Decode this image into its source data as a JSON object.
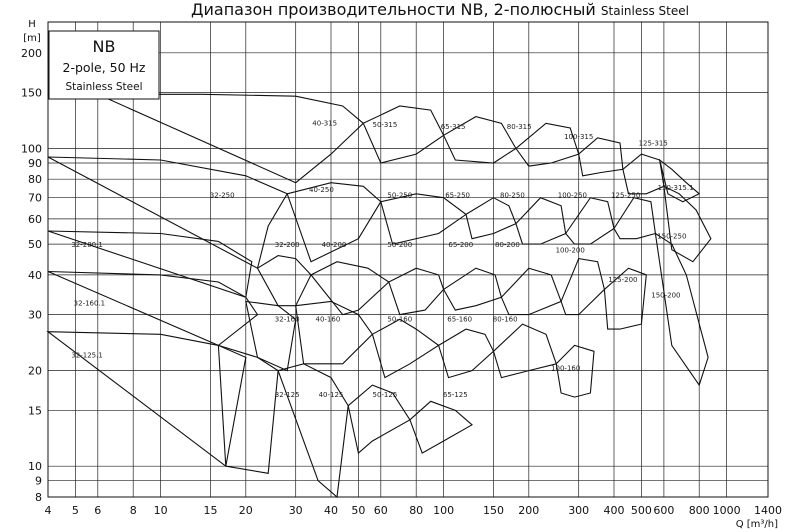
{
  "title": "Диапазон производительности NB, 2-полюсный",
  "title_suffix": "Stainless Steel",
  "legend": {
    "line1": "NB",
    "line2": "2-pole, 50 Hz",
    "line3": "Stainless Steel"
  },
  "chart_data": {
    "type": "line",
    "title": "Диапазон производительности NB, 2-полюсный Stainless Steel",
    "xlabel": "Q [m³/h]",
    "ylabel": "H [m]",
    "y_label_top": "H",
    "y_label_unit": "[m]",
    "x_scale": "log",
    "y_scale": "log",
    "xlim": [
      4,
      1400
    ],
    "ylim": [
      8,
      250
    ],
    "grid": true,
    "x_ticks": [
      {
        "v": 4,
        "t": "4"
      },
      {
        "v": 5,
        "t": "5"
      },
      {
        "v": 6,
        "t": "6"
      },
      {
        "v": 8,
        "t": "8"
      },
      {
        "v": 10,
        "t": "10"
      },
      {
        "v": 15,
        "t": "15"
      },
      {
        "v": 20,
        "t": "20"
      },
      {
        "v": 30,
        "t": "30"
      },
      {
        "v": 40,
        "t": "40"
      },
      {
        "v": 50,
        "t": "50"
      },
      {
        "v": 60,
        "t": "60"
      },
      {
        "v": 80,
        "t": "80"
      },
      {
        "v": 100,
        "t": "100"
      },
      {
        "v": 150,
        "t": "150"
      },
      {
        "v": 200,
        "t": "200"
      },
      {
        "v": 300,
        "t": "300"
      },
      {
        "v": 400,
        "t": "400"
      },
      {
        "v": 500,
        "t": "500"
      },
      {
        "v": 600,
        "t": "600"
      },
      {
        "v": 800,
        "t": "800"
      },
      {
        "v": 1000,
        "t": "1000"
      },
      {
        "v": 1400,
        "t": "1400"
      }
    ],
    "y_ticks": [
      {
        "v": 8,
        "t": "8"
      },
      {
        "v": 9,
        "t": "9"
      },
      {
        "v": 10,
        "t": "10"
      },
      {
        "v": 15,
        "t": "15"
      },
      {
        "v": 20,
        "t": "20"
      },
      {
        "v": 30,
        "t": "30"
      },
      {
        "v": 40,
        "t": "40"
      },
      {
        "v": 50,
        "t": "50"
      },
      {
        "v": 60,
        "t": "60"
      },
      {
        "v": 70,
        "t": "70"
      },
      {
        "v": 80,
        "t": "80"
      },
      {
        "v": 90,
        "t": "90"
      },
      {
        "v": 100,
        "t": "100"
      },
      {
        "v": 150,
        "t": "150"
      },
      {
        "v": 200,
        "t": "200"
      }
    ],
    "pumps": [
      {
        "name": "32-125.1",
        "label_at": [
          5.5,
          22
        ],
        "poly": [
          [
            4,
            26.5
          ],
          [
            10,
            26
          ],
          [
            16,
            24
          ],
          [
            20,
            22
          ],
          [
            17,
            10
          ]
        ]
      },
      {
        "name": "32-125",
        "label_at": [
          28,
          16.5
        ],
        "poly": [
          [
            16,
            24
          ],
          [
            22,
            22
          ],
          [
            26,
            20
          ],
          [
            24,
            9.5
          ],
          [
            17,
            10
          ]
        ]
      },
      {
        "name": "32-160.1",
        "label_at": [
          5.6,
          32
        ],
        "poly": [
          [
            4,
            41
          ],
          [
            10,
            40
          ],
          [
            16,
            38
          ],
          [
            20,
            34
          ],
          [
            22,
            30
          ],
          [
            16,
            24
          ]
        ]
      },
      {
        "name": "32-160",
        "label_at": [
          28,
          28.5
        ],
        "poly": [
          [
            20,
            33
          ],
          [
            26,
            32
          ],
          [
            30,
            29
          ],
          [
            28,
            20
          ],
          [
            22,
            22
          ]
        ]
      },
      {
        "name": "32-200.1",
        "label_at": [
          5.5,
          49
        ],
        "poly": [
          [
            4,
            55
          ],
          [
            10,
            54
          ],
          [
            16,
            51
          ],
          [
            21,
            44
          ],
          [
            20,
            34
          ]
        ]
      },
      {
        "name": "32-200",
        "label_at": [
          28,
          49
        ],
        "poly": [
          [
            22,
            42
          ],
          [
            26,
            46
          ],
          [
            30,
            45
          ],
          [
            34,
            40
          ],
          [
            30,
            32
          ],
          [
            26,
            32
          ]
        ]
      },
      {
        "name": "32-250",
        "label_at": [
          16.5,
          70
        ],
        "poly": [
          [
            4,
            94
          ],
          [
            10,
            92
          ],
          [
            20,
            82
          ],
          [
            28,
            72
          ],
          [
            24,
            57
          ],
          [
            22,
            42
          ]
        ]
      },
      {
        "name": "40-125",
        "label_at": [
          40,
          16.5
        ],
        "poly": [
          [
            26,
            20
          ],
          [
            32,
            21
          ],
          [
            40,
            19
          ],
          [
            46,
            15.5
          ],
          [
            42,
            8
          ],
          [
            36,
            9
          ]
        ]
      },
      {
        "name": "40-160",
        "label_at": [
          39,
          28.5
        ],
        "poly": [
          [
            30,
            32
          ],
          [
            40,
            33
          ],
          [
            50,
            30
          ],
          [
            56,
            26
          ],
          [
            44,
            21
          ],
          [
            32,
            21
          ]
        ]
      },
      {
        "name": "40-200",
        "label_at": [
          41,
          49
        ],
        "poly": [
          [
            34,
            40
          ],
          [
            42,
            44
          ],
          [
            54,
            42
          ],
          [
            64,
            38
          ],
          [
            50,
            31
          ],
          [
            44,
            30
          ]
        ]
      },
      {
        "name": "40-250",
        "label_at": [
          37,
          73
        ],
        "poly": [
          [
            28,
            72
          ],
          [
            40,
            78
          ],
          [
            52,
            76
          ],
          [
            60,
            68
          ],
          [
            50,
            52
          ],
          [
            34,
            44
          ]
        ]
      },
      {
        "name": "40-315",
        "label_at": [
          38,
          118
        ],
        "poly": [
          [
            6,
            148
          ],
          [
            14,
            148
          ],
          [
            30,
            146
          ],
          [
            44,
            136
          ],
          [
            52,
            120
          ],
          [
            40,
            96
          ],
          [
            30,
            78
          ]
        ]
      },
      {
        "name": "50-125",
        "label_at": [
          62,
          16.5
        ],
        "poly": [
          [
            46,
            15.5
          ],
          [
            56,
            18
          ],
          [
            66,
            17
          ],
          [
            76,
            14
          ],
          [
            56,
            12
          ],
          [
            50,
            11
          ]
        ]
      },
      {
        "name": "50-160",
        "label_at": [
          70,
          28.5
        ],
        "poly": [
          [
            56,
            26
          ],
          [
            70,
            29
          ],
          [
            80,
            27
          ],
          [
            96,
            24
          ],
          [
            76,
            21
          ],
          [
            62,
            19
          ]
        ]
      },
      {
        "name": "50-200",
        "label_at": [
          70,
          49
        ],
        "poly": [
          [
            64,
            38
          ],
          [
            80,
            42
          ],
          [
            96,
            40
          ],
          [
            100,
            36
          ],
          [
            86,
            31
          ],
          [
            70,
            30
          ]
        ]
      },
      {
        "name": "50-250",
        "label_at": [
          70,
          70
        ],
        "poly": [
          [
            60,
            68
          ],
          [
            80,
            72
          ],
          [
            100,
            70
          ],
          [
            120,
            62
          ],
          [
            96,
            54
          ],
          [
            66,
            50
          ]
        ]
      },
      {
        "name": "50-315",
        "label_at": [
          62,
          117
        ],
        "poly": [
          [
            52,
            120
          ],
          [
            70,
            136
          ],
          [
            90,
            132
          ],
          [
            100,
            110
          ],
          [
            80,
            96
          ],
          [
            60,
            90
          ]
        ]
      },
      {
        "name": "65-125",
        "label_at": [
          110,
          16.5
        ],
        "poly": [
          [
            76,
            14
          ],
          [
            90,
            16
          ],
          [
            110,
            15
          ],
          [
            126,
            13.5
          ],
          [
            100,
            12
          ],
          [
            84,
            11
          ]
        ]
      },
      {
        "name": "65-160",
        "label_at": [
          114,
          28.5
        ],
        "poly": [
          [
            96,
            24
          ],
          [
            120,
            27
          ],
          [
            140,
            26
          ],
          [
            150,
            23
          ],
          [
            126,
            20
          ],
          [
            104,
            19
          ]
        ]
      },
      {
        "name": "65-200",
        "label_at": [
          115,
          49
        ],
        "poly": [
          [
            100,
            36
          ],
          [
            130,
            42
          ],
          [
            152,
            40
          ],
          [
            160,
            34
          ],
          [
            130,
            32
          ],
          [
            110,
            31
          ]
        ]
      },
      {
        "name": "65-250",
        "label_at": [
          112,
          70
        ],
        "poly": [
          [
            120,
            62
          ],
          [
            150,
            70
          ],
          [
            170,
            66
          ],
          [
            180,
            58
          ],
          [
            150,
            54
          ],
          [
            126,
            52
          ]
        ]
      },
      {
        "name": "65-315",
        "label_at": [
          108,
          115
        ],
        "poly": [
          [
            100,
            110
          ],
          [
            130,
            126
          ],
          [
            160,
            120
          ],
          [
            180,
            100
          ],
          [
            150,
            90
          ],
          [
            110,
            92
          ]
        ]
      },
      {
        "name": "80-160",
        "label_at": [
          165,
          28.5
        ],
        "poly": [
          [
            150,
            23
          ],
          [
            190,
            28
          ],
          [
            230,
            26
          ],
          [
            250,
            21
          ],
          [
            200,
            20
          ],
          [
            160,
            19
          ]
        ]
      },
      {
        "name": "80-200",
        "label_at": [
          168,
          49
        ],
        "poly": [
          [
            160,
            34
          ],
          [
            200,
            42
          ],
          [
            240,
            40
          ],
          [
            260,
            33
          ],
          [
            200,
            30
          ],
          [
            170,
            30
          ]
        ]
      },
      {
        "name": "80-250",
        "label_at": [
          175,
          70
        ],
        "poly": [
          [
            180,
            58
          ],
          [
            220,
            70
          ],
          [
            260,
            66
          ],
          [
            270,
            54
          ],
          [
            220,
            50
          ],
          [
            190,
            50
          ]
        ]
      },
      {
        "name": "80-315",
        "label_at": [
          185,
          115
        ],
        "poly": [
          [
            180,
            100
          ],
          [
            230,
            120
          ],
          [
            280,
            116
          ],
          [
            300,
            96
          ],
          [
            240,
            90
          ],
          [
            200,
            88
          ]
        ]
      },
      {
        "name": "100-160",
        "label_at": [
          270,
          20
        ],
        "poly": [
          [
            250,
            21
          ],
          [
            290,
            24
          ],
          [
            340,
            23
          ],
          [
            330,
            17
          ],
          [
            290,
            16.5
          ],
          [
            260,
            17
          ]
        ]
      },
      {
        "name": "100-200",
        "label_at": [
          280,
          47
        ],
        "poly": [
          [
            260,
            33
          ],
          [
            300,
            45
          ],
          [
            350,
            44
          ],
          [
            370,
            36
          ],
          [
            300,
            30
          ],
          [
            270,
            30
          ]
        ]
      },
      {
        "name": "100-250",
        "label_at": [
          285,
          70
        ],
        "poly": [
          [
            270,
            54
          ],
          [
            330,
            70
          ],
          [
            380,
            68
          ],
          [
            400,
            56
          ],
          [
            330,
            50
          ],
          [
            290,
            50
          ]
        ]
      },
      {
        "name": "100-315",
        "label_at": [
          300,
          107
        ],
        "poly": [
          [
            300,
            96
          ],
          [
            350,
            108
          ],
          [
            420,
            104
          ],
          [
            430,
            86
          ],
          [
            360,
            84
          ],
          [
            310,
            82
          ]
        ]
      },
      {
        "name": "125-200",
        "label_at": [
          430,
          38
        ],
        "poly": [
          [
            370,
            36
          ],
          [
            450,
            42
          ],
          [
            520,
            40
          ],
          [
            500,
            28
          ],
          [
            420,
            27
          ],
          [
            380,
            27
          ]
        ]
      },
      {
        "name": "125-250",
        "label_at": [
          440,
          70
        ],
        "poly": [
          [
            400,
            56
          ],
          [
            470,
            70
          ],
          [
            540,
            68
          ],
          [
            560,
            54
          ],
          [
            480,
            52
          ],
          [
            420,
            52
          ]
        ]
      },
      {
        "name": "125-315",
        "label_at": [
          550,
          102
        ],
        "poly": [
          [
            430,
            86
          ],
          [
            500,
            96
          ],
          [
            580,
            92
          ],
          [
            600,
            76
          ],
          [
            520,
            72
          ],
          [
            450,
            72
          ]
        ]
      },
      {
        "name": "150-200",
        "label_at": [
          610,
          34
        ],
        "poly": [
          [
            560,
            54
          ],
          [
            640,
            50
          ],
          [
            720,
            40
          ],
          [
            860,
            22
          ],
          [
            800,
            18
          ],
          [
            640,
            24
          ]
        ]
      },
      {
        "name": "150-250",
        "label_at": [
          640,
          52
        ],
        "poly": [
          [
            600,
            76
          ],
          [
            680,
            72
          ],
          [
            780,
            64
          ],
          [
            880,
            52
          ],
          [
            760,
            44
          ],
          [
            640,
            48
          ]
        ]
      },
      {
        "name": "150-315.1",
        "label_at": [
          660,
          74
        ],
        "poly": [
          [
            580,
            92
          ],
          [
            640,
            86
          ],
          [
            720,
            78
          ],
          [
            800,
            72
          ],
          [
            700,
            68
          ],
          [
            620,
            72
          ]
        ]
      }
    ]
  }
}
